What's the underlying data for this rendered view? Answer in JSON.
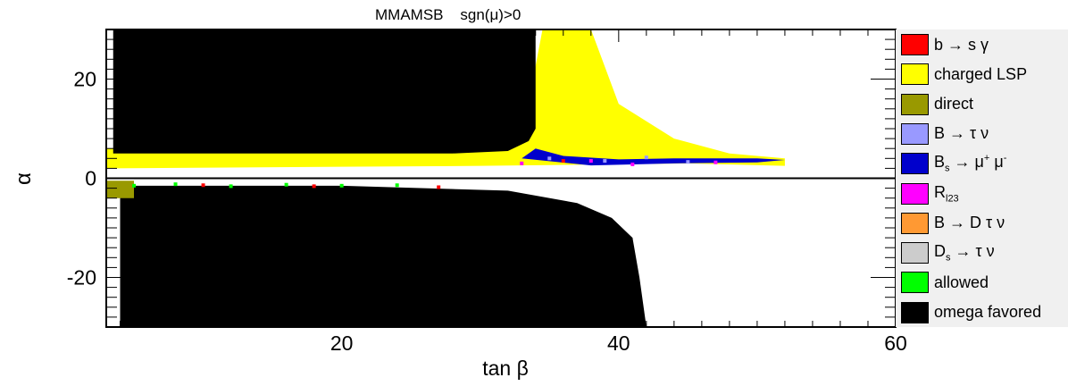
{
  "chart_data": {
    "type": "scatter",
    "title": "MMAMSB    sgn(μ)>0",
    "xlabel": "tan β",
    "ylabel": "α",
    "xlim": [
      3,
      60
    ],
    "ylim": [
      -30,
      30
    ],
    "x_ticks": [
      "20",
      "40",
      "60"
    ],
    "y_ticks": [
      "20",
      "0",
      "-20"
    ],
    "grid": false,
    "legend_position": "right",
    "legend": [
      {
        "label": "b → s γ",
        "color": "#ff0000"
      },
      {
        "label": "charged LSP",
        "color": "#ffff00"
      },
      {
        "label": "direct",
        "color": "#999900"
      },
      {
        "label": "B → τ ν",
        "color": "#9999ff"
      },
      {
        "label": "B",
        "sub": "s",
        "rest": " → μ",
        "sup1": "+",
        "rest2": " μ",
        "sup2": "-",
        "color": "#0000cc"
      },
      {
        "label": "R",
        "sub": "l23",
        "color": "#ff00ff"
      },
      {
        "label": "B → D τ ν",
        "color": "#ff9933"
      },
      {
        "label": "D",
        "sub": "s",
        "rest": " → τ ν",
        "color": "#cccccc"
      },
      {
        "label": "allowed",
        "color": "#00ff00"
      },
      {
        "label": "omega favored",
        "color": "#000000"
      }
    ],
    "regions": [
      {
        "name": "charged LSP",
        "color": "#ffff00",
        "polygon": [
          [
            3,
            2
          ],
          [
            3,
            6
          ],
          [
            30,
            5.5
          ],
          [
            33,
            8
          ],
          [
            34.5,
            30
          ],
          [
            38,
            30
          ],
          [
            40,
            15
          ],
          [
            44,
            8
          ],
          [
            48,
            5
          ],
          [
            52,
            4
          ],
          [
            52,
            2.5
          ],
          [
            45,
            3
          ],
          [
            30,
            2.5
          ]
        ]
      },
      {
        "name": "omega favored (alpha>0)",
        "color": "#000000",
        "polygon": [
          [
            3,
            30
          ],
          [
            34,
            30
          ],
          [
            34,
            10
          ],
          [
            33.5,
            7.5
          ],
          [
            32,
            5.5
          ],
          [
            28,
            5
          ],
          [
            3.5,
            5
          ],
          [
            3.5,
            30
          ]
        ]
      },
      {
        "name": "omega favored (alpha<0)",
        "color": "#000000",
        "polygon": [
          [
            4,
            -1.5
          ],
          [
            20,
            -1.5
          ],
          [
            32,
            -2.5
          ],
          [
            37,
            -5
          ],
          [
            39.5,
            -8
          ],
          [
            41,
            -12
          ],
          [
            41.5,
            -20
          ],
          [
            42,
            -30
          ],
          [
            4,
            -30
          ]
        ]
      },
      {
        "name": "direct",
        "color": "#999900",
        "polygon": [
          [
            3,
            -0.5
          ],
          [
            5,
            -0.5
          ],
          [
            5,
            -4
          ],
          [
            3,
            -4
          ]
        ]
      },
      {
        "name": "B_s → μ+ μ-",
        "color": "#0000cc",
        "polygon": [
          [
            38,
            2.6
          ],
          [
            44,
            3
          ],
          [
            50,
            3.2
          ],
          [
            52,
            3.7
          ],
          [
            50,
            4
          ],
          [
            44,
            4
          ],
          [
            40,
            3.8
          ],
          [
            36,
            4.5
          ],
          [
            34,
            6
          ],
          [
            33,
            4
          ]
        ]
      }
    ],
    "scatter_points": [
      {
        "series": "allowed",
        "color": "#00ff00",
        "x": [
          5,
          8,
          12,
          16,
          20,
          24
        ],
        "y": [
          -1.5,
          -1.2,
          -1.6,
          -1.3,
          -1.5,
          -1.4
        ]
      },
      {
        "series": "b → s γ",
        "color": "#ff0000",
        "x": [
          10,
          18,
          27,
          36
        ],
        "y": [
          -1.4,
          -1.6,
          -1.8,
          3.5
        ]
      },
      {
        "series": "R_l23",
        "color": "#ff00ff",
        "x": [
          33,
          38,
          41,
          47
        ],
        "y": [
          3,
          3.5,
          2.8,
          3.2
        ]
      },
      {
        "series": "B → τ ν",
        "color": "#9999ff",
        "x": [
          35,
          39,
          42,
          45
        ],
        "y": [
          4,
          3.5,
          4.2,
          3.3
        ]
      }
    ]
  }
}
